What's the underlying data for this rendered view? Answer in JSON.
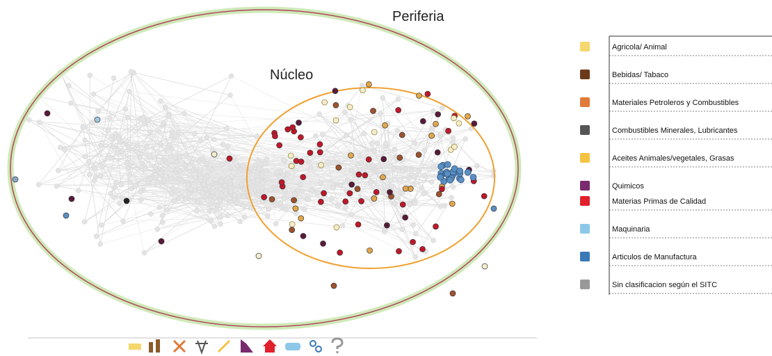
{
  "labels": {
    "periphery": "Periferia",
    "core": "Núcleo"
  },
  "legend": {
    "items": [
      "Agricola/ Animal",
      "Bebidas/ Tabaco",
      "Materiales Petroleros y Combustibles",
      "Combustibles Minerales, Lubricantes",
      "Aceites Animales/vegetales, Grasas",
      "Quimicos",
      "Materias Primas de Calidad",
      "Maquinaria",
      "Articulos de Manufactura",
      "Sin clasificacion según el SITC"
    ]
  }
}
